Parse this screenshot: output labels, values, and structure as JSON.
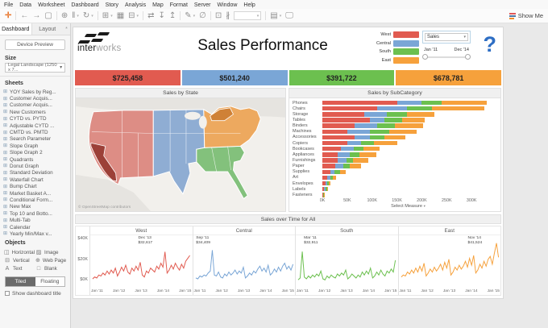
{
  "menu": {
    "items": [
      "File",
      "Data",
      "Worksheet",
      "Dashboard",
      "Story",
      "Analysis",
      "Map",
      "Format",
      "Server",
      "Window",
      "Help"
    ]
  },
  "toolbar": {
    "show_me_label": "Show Me"
  },
  "sidebar": {
    "tabs": [
      {
        "label": "Dashboard"
      },
      {
        "label": "Layout"
      }
    ],
    "device_preview": "Device Preview",
    "size_label": "Size",
    "size_value": "Legal Landscape (1250 x 7...",
    "sheets_label": "Sheets",
    "sheets": [
      "YOY Sales by Reg...",
      "Customer Acquis...",
      "Customer Acquis...",
      "New Customers",
      "CYTD vs. PYTD",
      "Adjustable CYTD ...",
      "CMTD vs. PMTD",
      "Search Parameter",
      "Slope Graph",
      "Slope Graph 2",
      "Quadrants",
      "Donut Graph",
      "Standard Deviation",
      "Waterfall Chart",
      "Bump Chart",
      "Market Basket A...",
      "Conditional Form...",
      "New Max",
      "Top 10 and Botto...",
      "Multi-Tab",
      "Calendar",
      "Yearly Min/Max v..."
    ],
    "objects_label": "Objects",
    "objects": [
      {
        "label": "Horizontal",
        "icon": "◫",
        "icon_name": "horizontal-container-icon"
      },
      {
        "label": "Image",
        "icon": "▨",
        "icon_name": "image-icon"
      },
      {
        "label": "Vertical",
        "icon": "⊟",
        "icon_name": "vertical-container-icon"
      },
      {
        "label": "Web Page",
        "icon": "⊕",
        "icon_name": "web-page-icon"
      },
      {
        "label": "Text",
        "icon": "A",
        "icon_name": "text-icon"
      },
      {
        "label": "Blank",
        "icon": "□",
        "icon_name": "blank-icon"
      }
    ],
    "tiled_label": "Tiled",
    "floating_label": "Floating",
    "show_title_label": "Show dashboard title"
  },
  "dashboard": {
    "logo": {
      "word1": "inter",
      "word2": "works"
    },
    "title": "Sales Performance",
    "legend": [
      {
        "label": "West",
        "color": "#e15b50"
      },
      {
        "label": "Central",
        "color": "#7aa6d6"
      },
      {
        "label": "South",
        "color": "#6cc04f"
      },
      {
        "label": "East",
        "color": "#f6a13c"
      }
    ],
    "filters": {
      "measure_value": "Sales",
      "date_start": "Jan '11",
      "date_end": "Dec '14"
    },
    "help_glyph": "?",
    "kpis": [
      {
        "value": "$725,458",
        "color": "#e15b50"
      },
      {
        "value": "$501,240",
        "color": "#7aa6d6"
      },
      {
        "value": "$391,722",
        "color": "#6cc04f"
      },
      {
        "value": "$678,781",
        "color": "#f6a13c"
      }
    ],
    "panels": {
      "map_title": "Sales by State",
      "map_attribution": "© OpenStreetMap contributors",
      "bars_title": "Sales by SubCategory",
      "time_title": "Sales over Time for All"
    }
  },
  "chart_data": [
    {
      "type": "bar",
      "title": "Sales by SubCategory",
      "stacked": true,
      "orientation": "horizontal",
      "categories": [
        "Phones",
        "Chairs",
        "Storage",
        "Tables",
        "Binders",
        "Machines",
        "Accessories",
        "Copiers",
        "Bookcases",
        "Appliances",
        "Furnishings",
        "Paper",
        "Supplies",
        "Art",
        "Envelopes",
        "Labels",
        "Fasteners"
      ],
      "series": [
        {
          "name": "West",
          "color": "#e15b50",
          "values": [
            150,
            110,
            85,
            95,
            65,
            50,
            65,
            50,
            38,
            30,
            30,
            26,
            16,
            10,
            6,
            4,
            1.2
          ]
        },
        {
          "name": "Central",
          "color": "#7aa6d6",
          "values": [
            50,
            60,
            45,
            30,
            45,
            45,
            30,
            28,
            25,
            25,
            18,
            16,
            9,
            6,
            4,
            3,
            0.8
          ]
        },
        {
          "name": "South",
          "color": "#6cc04f",
          "values": [
            40,
            50,
            40,
            35,
            35,
            40,
            30,
            25,
            20,
            20,
            14,
            13,
            10,
            5,
            3,
            2,
            0.5
          ]
        },
        {
          "name": "East",
          "color": "#f6a13c",
          "values": [
            90,
            105,
            55,
            45,
            58,
            55,
            42,
            47,
            32,
            33,
            30,
            23,
            12,
            6,
            4,
            3,
            0.8
          ]
        }
      ],
      "x_ticks": [
        "0K",
        "50K",
        "100K",
        "150K",
        "200K",
        "250K",
        "300K"
      ],
      "x_tick_values": [
        0,
        50,
        100,
        150,
        200,
        250,
        300
      ],
      "xmax": 345,
      "xlabel": "Select Measure",
      "unit": "K USD"
    },
    {
      "type": "line",
      "title": "Sales over Time for All",
      "y_ticks": [
        "$40K",
        "$20K",
        "$0K"
      ],
      "ylim": [
        0,
        44
      ],
      "x_ticks": [
        "Jan '11",
        "Jan '12",
        "Jan '13",
        "Jan '14",
        "Jan '15"
      ],
      "unit": "K USD per month",
      "panels": [
        {
          "name": "West",
          "color": "#e15b50",
          "annotation": {
            "date": "Dec '13",
            "value": "$32,617",
            "left_pct": 47
          },
          "values": [
            5,
            7,
            6,
            9,
            8,
            11,
            9,
            13,
            10,
            14,
            11,
            16,
            8,
            12,
            17,
            13,
            19,
            12,
            10,
            16,
            13,
            18,
            14,
            22,
            9,
            7,
            13,
            11,
            16,
            14,
            12,
            18,
            15,
            21,
            17,
            32.6,
            11,
            14,
            19,
            15,
            21,
            17,
            14,
            20,
            16,
            23,
            26,
            29
          ]
        },
        {
          "name": "Central",
          "color": "#7aa6d6",
          "annotation": {
            "date": "Sep '11",
            "value": "$34,409",
            "left_pct": 3
          },
          "values": [
            6,
            5,
            8,
            7,
            9,
            8,
            11,
            13,
            34.4,
            9,
            8,
            12,
            7,
            6,
            10,
            8,
            12,
            9,
            11,
            14,
            10,
            13,
            11,
            17,
            6,
            8,
            11,
            9,
            13,
            11,
            15,
            18,
            13,
            16,
            12,
            19,
            9,
            11,
            15,
            12,
            17,
            13,
            18,
            21,
            15,
            18,
            14,
            20
          ]
        },
        {
          "name": "South",
          "color": "#6cc04f",
          "annotation": {
            "date": "Mar '11",
            "value": "$32,911",
            "left_pct": 8
          },
          "values": [
            4,
            6,
            32.9,
            7,
            5,
            8,
            6,
            9,
            7,
            10,
            8,
            13,
            5,
            4,
            8,
            6,
            9,
            7,
            6,
            10,
            8,
            11,
            9,
            14,
            5,
            7,
            10,
            8,
            6,
            9,
            7,
            12,
            9,
            13,
            10,
            16,
            6,
            8,
            12,
            9,
            14,
            10,
            8,
            13,
            11,
            15,
            12,
            24
          ]
        },
        {
          "name": "East",
          "color": "#f6a13c",
          "annotation": {
            "date": "Nov '14",
            "value": "$41,524",
            "left_pct": 68
          },
          "values": [
            7,
            9,
            8,
            12,
            10,
            14,
            11,
            16,
            12,
            18,
            13,
            21,
            8,
            11,
            15,
            12,
            17,
            13,
            16,
            20,
            14,
            22,
            16,
            25,
            9,
            12,
            17,
            14,
            19,
            15,
            18,
            23,
            17,
            26,
            19,
            29,
            11,
            14,
            20,
            16,
            23,
            18,
            25,
            28,
            20,
            31,
            41.5,
            27
          ]
        }
      ]
    }
  ]
}
